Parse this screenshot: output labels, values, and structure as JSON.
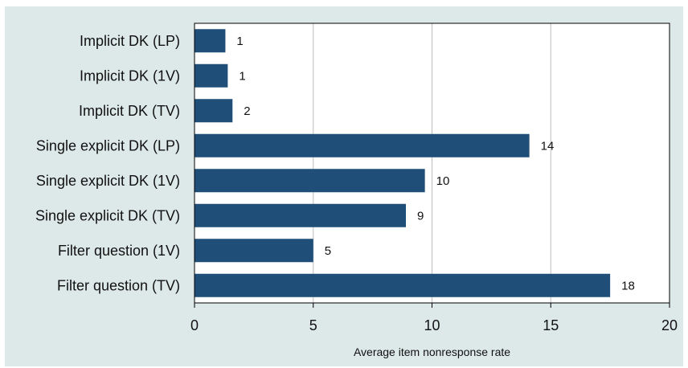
{
  "chart_data": {
    "type": "bar",
    "orientation": "horizontal",
    "categories": [
      "Implicit DK (LP)",
      "Implicit DK (1V)",
      "Implicit DK (TV)",
      "Single explicit DK (LP)",
      "Single explicit DK (1V)",
      "Single explicit DK (TV)",
      "Filter question (1V)",
      "Filter question (TV)"
    ],
    "values": [
      1.3,
      1.4,
      1.6,
      14.1,
      9.7,
      8.9,
      5.0,
      17.5
    ],
    "data_labels": [
      "1",
      "1",
      "2",
      "14",
      "10",
      "9",
      "5",
      "18"
    ],
    "xlabel": "Average item nonresponse rate",
    "ylabel": "",
    "xlim": [
      0,
      20
    ],
    "xticks": [
      0,
      5,
      10,
      15,
      20
    ],
    "grid": "vertical",
    "bar_color": "#1f4e79",
    "background_color": "#dde9e8",
    "plot_background_color": "#ffffff"
  }
}
